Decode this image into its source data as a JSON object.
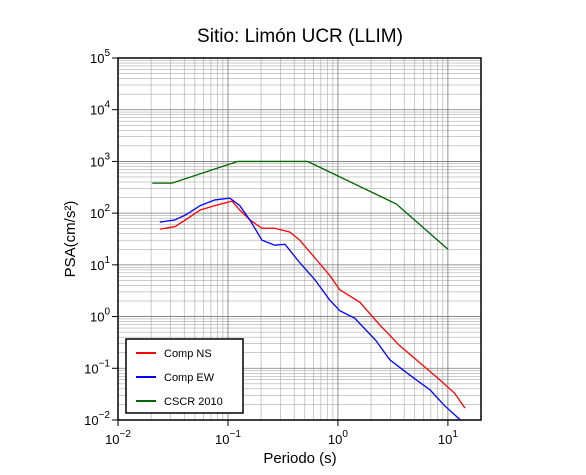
{
  "chart_data": {
    "type": "line",
    "title": "Sitio: Limón UCR (LLIM)",
    "x_label": "Periodo (s)",
    "y_label": "PSA(cm/s²)",
    "log_x": true,
    "log_y": true,
    "grid": true,
    "legend": "lower left",
    "xlim": [
      0.01,
      20
    ],
    "ylim": [
      0.01,
      100000
    ],
    "xticks": [
      {
        "value": 0.01,
        "label": "10",
        "exponent": "−2"
      },
      {
        "value": 0.1,
        "label": "10",
        "exponent": "−1"
      },
      {
        "value": 1,
        "label": "10",
        "exponent": "0"
      },
      {
        "value": 10,
        "label": "10",
        "exponent": "1"
      }
    ],
    "yticks": [
      {
        "value": 0.01,
        "label": "10",
        "exponent": "−2"
      },
      {
        "value": 0.1,
        "label": "10",
        "exponent": "−1"
      },
      {
        "value": 1,
        "label": "10",
        "exponent": "0"
      },
      {
        "value": 10,
        "label": "10",
        "exponent": "1"
      },
      {
        "value": 100,
        "label": "10",
        "exponent": "2"
      },
      {
        "value": 1000,
        "label": "10",
        "exponent": "3"
      },
      {
        "value": 10000,
        "label": "10",
        "exponent": "4"
      },
      {
        "value": 100000,
        "label": "10",
        "exponent": "5"
      }
    ],
    "series": [
      {
        "name": "Comp NS",
        "color": "#ff0000",
        "x": [
          0.024,
          0.033,
          0.041,
          0.056,
          0.076,
          0.109,
          0.128,
          0.158,
          0.204,
          0.267,
          0.366,
          0.45,
          0.62,
          0.84,
          1.04,
          1.58,
          2.4,
          3.6,
          5.5,
          8.5,
          11.5,
          14.3
        ],
        "values": [
          49,
          55,
          74,
          115,
          140,
          171,
          115,
          74,
          51,
          51,
          43,
          30,
          13.5,
          6.3,
          3.3,
          1.9,
          0.69,
          0.28,
          0.13,
          0.059,
          0.033,
          0.017
        ]
      },
      {
        "name": "Comp EW",
        "color": "#0000ff",
        "x": [
          0.024,
          0.033,
          0.041,
          0.056,
          0.076,
          0.104,
          0.128,
          0.158,
          0.204,
          0.267,
          0.33,
          0.45,
          0.62,
          0.84,
          1.04,
          1.42,
          2.2,
          2.97,
          4.5,
          6.9,
          9.3,
          13
        ],
        "values": [
          67,
          74,
          92,
          140,
          180,
          195,
          140,
          74,
          30,
          24,
          25,
          11,
          5.1,
          2.1,
          1.3,
          0.93,
          0.35,
          0.145,
          0.074,
          0.038,
          0.019,
          0.01
        ]
      },
      {
        "name": "CSCR 2010",
        "color": "#006400",
        "x": [
          0.0205,
          0.031,
          0.123,
          0.53,
          3.4,
          10
        ],
        "values": [
          380,
          380,
          1000,
          1000,
          150,
          20
        ]
      }
    ]
  }
}
